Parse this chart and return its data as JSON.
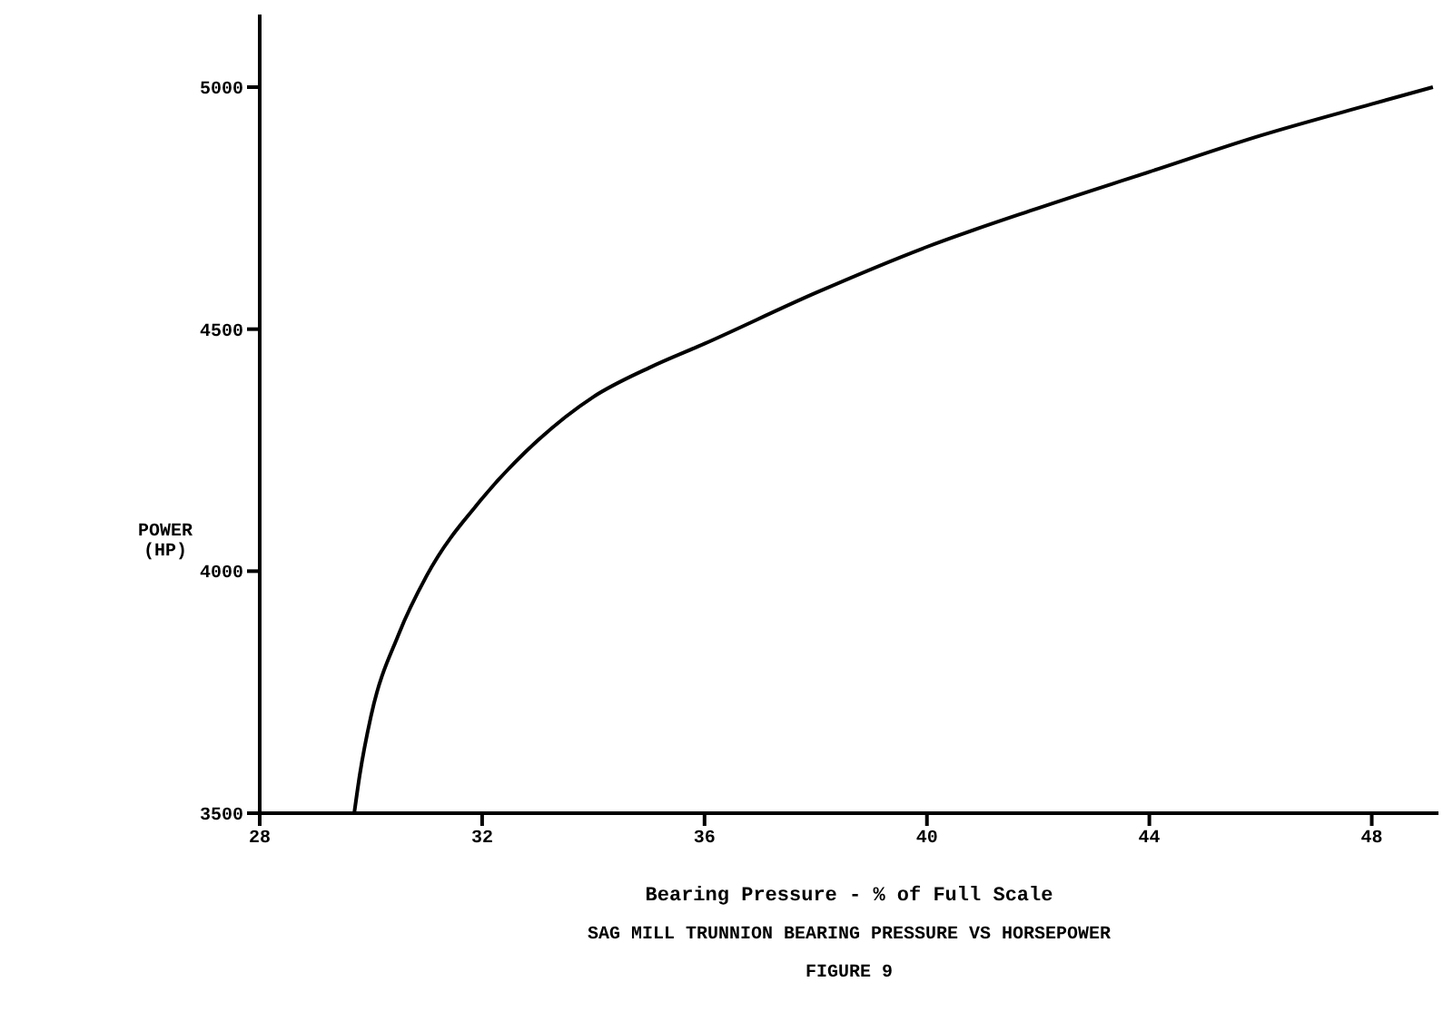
{
  "chart_data": {
    "type": "line",
    "ylabel": "POWER\n(HP)",
    "xlabel": "Bearing Pressure - % of Full Scale",
    "annotations": [
      "SAG MILL TRUNNION BEARING PRESSURE VS HORSEPOWER",
      "FIGURE 9"
    ],
    "x": [
      29.7,
      29.8,
      30,
      30.5,
      31,
      32,
      33,
      34,
      35,
      36,
      38,
      40,
      42,
      44,
      46,
      48,
      49.1
    ],
    "series": [
      {
        "color": "#000000",
        "values": [
          3500,
          3580,
          3700,
          3870,
          3990,
          4150,
          4270,
          4360,
          4420,
          4470,
          4575,
          4670,
          4750,
          4825,
          4900,
          4965,
          5000
        ]
      }
    ],
    "xlim": [
      28,
      49.2
    ],
    "xticks": [
      28,
      32,
      36,
      40,
      44,
      48
    ],
    "ylim": [
      3500,
      5150
    ],
    "yticks": [
      3500,
      4000,
      4500,
      5000
    ],
    "grid": false,
    "legend": false,
    "marker": "none",
    "line_style": "solid"
  }
}
